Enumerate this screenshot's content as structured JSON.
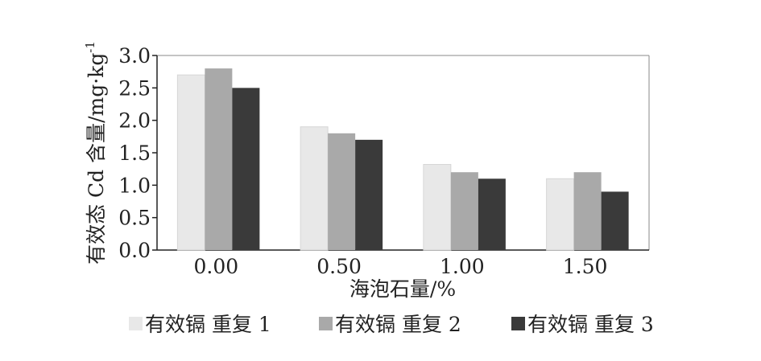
{
  "chart_data": {
    "type": "bar",
    "categories": [
      "0.00",
      "0.50",
      "1.00",
      "1.50"
    ],
    "series": [
      {
        "name": "有效镉 重复 1",
        "values": [
          2.7,
          1.9,
          1.32,
          1.1
        ],
        "color": "#e8e8e8"
      },
      {
        "name": "有效镉 重复 2",
        "values": [
          2.8,
          1.8,
          1.2,
          1.2
        ],
        "color": "#a9a9a9"
      },
      {
        "name": "有效镉 重复 3",
        "values": [
          2.5,
          1.7,
          1.1,
          0.9
        ],
        "color": "#3a3a3a"
      }
    ],
    "xlabel": "海泡石量/%",
    "ylabel": "有效态 Cd 含量/mg·kg",
    "ylabel_superscript": "-1",
    "ylim": [
      0,
      3.0
    ],
    "yticks": [
      "0.0",
      "0.5",
      "1.0",
      "1.5",
      "2.0",
      "2.5",
      "3.0"
    ],
    "grid": false,
    "legend_position": "bottom"
  }
}
